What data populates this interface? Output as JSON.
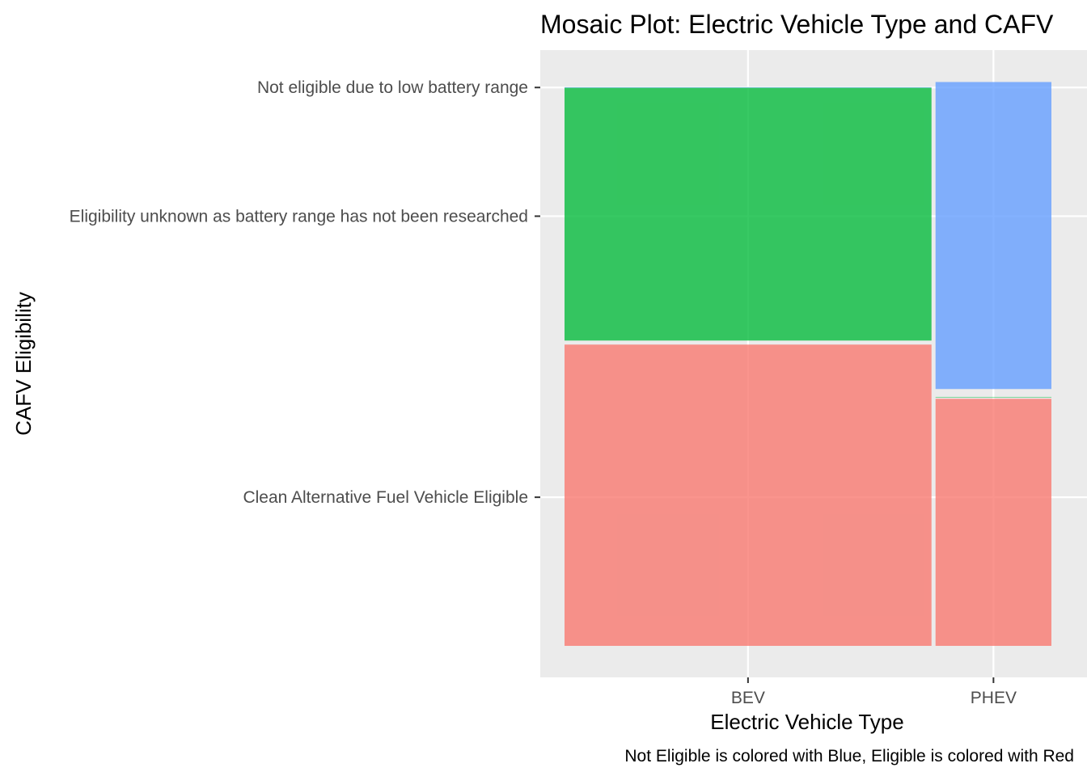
{
  "chart_data": {
    "type": "mosaic",
    "title": "Mosaic Plot: Electric Vehicle Type and CAFV",
    "xlabel": "Electric Vehicle Type",
    "ylabel": "CAFV Eligibility",
    "caption": "Not Eligible is colored with Blue, Eligible is colored with Red",
    "categories": [
      "BEV",
      "PHEV"
    ],
    "category_shares": [
      0.76,
      0.24
    ],
    "y_tick_labels": [
      "Clean Alternative Fuel Vehicle Eligible",
      "Eligibility unknown as battery range has not been researched",
      "Not eligible due to low battery range"
    ],
    "series": [
      {
        "name": "Clean Alternative Fuel Vehicle Eligible",
        "color": "#F8766D",
        "values": [
          0.535,
          0.44
        ]
      },
      {
        "name": "Eligibility unknown as battery range has not been researched",
        "color": "#00BA38",
        "values": [
          0.45,
          0.003
        ]
      },
      {
        "name": "Not eligible due to low battery range",
        "color": "#619CFF",
        "values": [
          0.001,
          0.545
        ]
      }
    ],
    "grid": true,
    "legend": "none"
  }
}
